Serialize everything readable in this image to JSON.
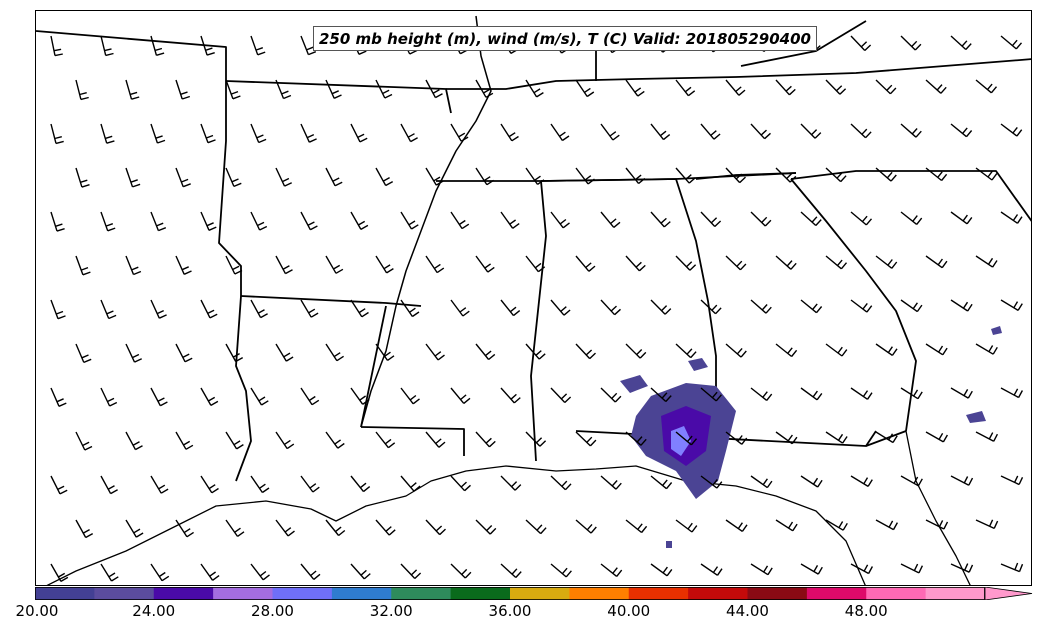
{
  "title": "250 mb height (m), wind (m/s), T (C) Valid: 201805290400",
  "colorbar": {
    "labels": [
      "20.00",
      "24.00",
      "28.00",
      "32.00",
      "36.00",
      "40.00",
      "44.00",
      "48.00"
    ],
    "colors": [
      "#434094",
      "#5b4c9e",
      "#4a0aa8",
      "#a46de0",
      "#6f6ff8",
      "#2f7ccf",
      "#2e8b5c",
      "#0a6b1c",
      "#d8ab10",
      "#ff7f00",
      "#e83000",
      "#c40a0a",
      "#8a0a14",
      "#dd0a6a",
      "#ff69b4",
      "#ff99cc"
    ],
    "extend": "max"
  },
  "colors": {
    "state_lines": "#000000",
    "temp_patch_dark": "#4b4494",
    "temp_patch_mid": "#4a0aa8",
    "temp_patch_light": "#8080ff"
  }
}
